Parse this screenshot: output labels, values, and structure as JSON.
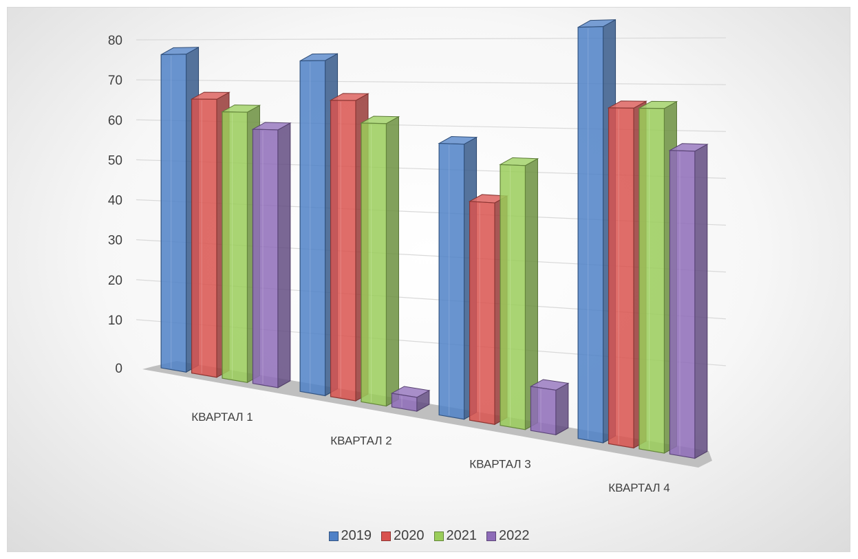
{
  "chart_data": {
    "type": "bar",
    "style": "3d-clustered-column",
    "categories": [
      "КВАРТАЛ 1",
      "КВАРТАЛ 2",
      "КВАРТАЛ 3",
      "КВАРТАЛ 4"
    ],
    "series": [
      {
        "name": "2019",
        "color": "#4f81c7",
        "values": [
          78,
          76,
          58,
          82
        ]
      },
      {
        "name": "2020",
        "color": "#d9534f",
        "values": [
          67,
          67,
          46,
          66
        ]
      },
      {
        "name": "2021",
        "color": "#9acd5a",
        "values": [
          64,
          62,
          54,
          66
        ]
      },
      {
        "name": "2022",
        "color": "#8e6cb8",
        "values": [
          60,
          3,
          9,
          58
        ]
      }
    ],
    "ylim": [
      0,
      80
    ],
    "yticks": [
      "0",
      "10",
      "20",
      "30",
      "40",
      "50",
      "60",
      "70",
      "80"
    ],
    "grid": true,
    "legend_position": "bottom"
  }
}
